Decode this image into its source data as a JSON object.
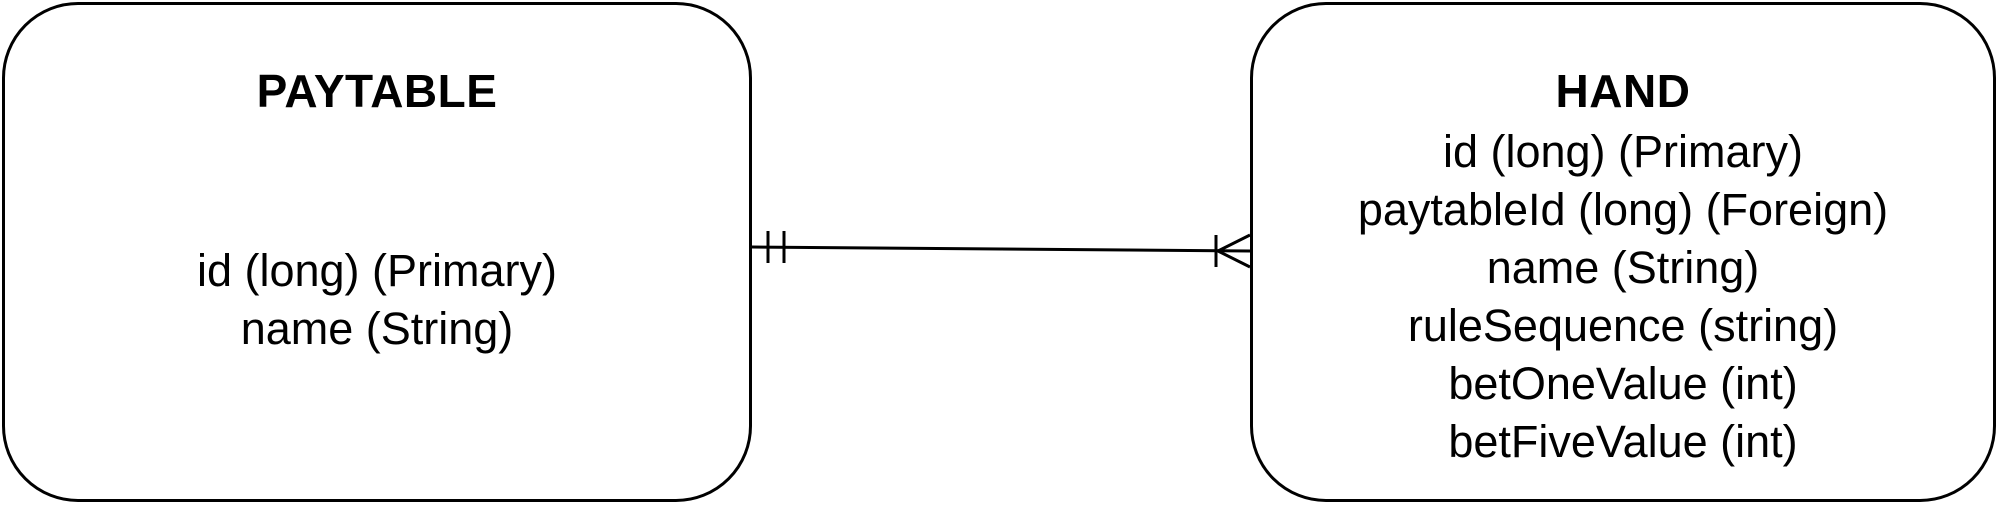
{
  "entities": {
    "paytable": {
      "title": "PAYTABLE",
      "attributes": [
        "id (long) (Primary)",
        "name (String)"
      ]
    },
    "hand": {
      "title": "HAND",
      "attributes": [
        "id (long) (Primary)",
        "paytableId (long) (Foreign)",
        "name (String)",
        "ruleSequence (string)",
        "betOneValue (int)",
        "betFiveValue (int)"
      ]
    }
  },
  "relationship": {
    "from": "PAYTABLE",
    "to": "HAND",
    "from_cardinality": "exactly-one",
    "to_cardinality": "one-or-many"
  },
  "colors": {
    "stroke": "#000000",
    "background": "#ffffff"
  }
}
